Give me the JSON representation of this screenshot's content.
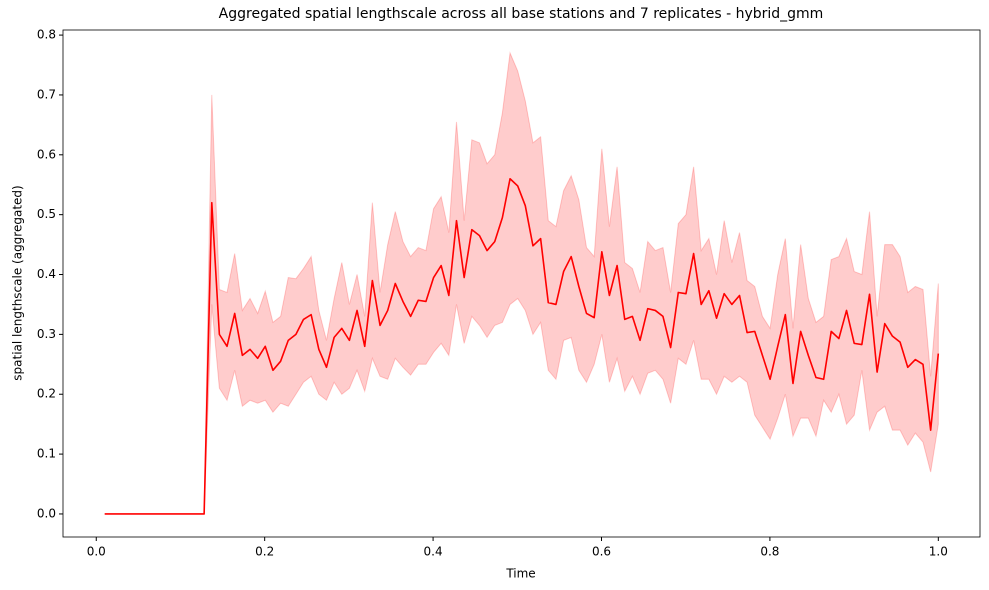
{
  "chart_data": {
    "type": "line",
    "title": "Aggregated spatial lengthscale across all base stations and 7 replicates - hybrid_gmm",
    "x_label": "Time",
    "y_label": "spatial lengthscale (aggregated)",
    "x": [
      0.01,
      0.0191,
      0.0282,
      0.0372,
      0.0463,
      0.0554,
      0.0645,
      0.0736,
      0.0827,
      0.0917,
      0.1008,
      0.1099,
      0.119,
      0.1281,
      0.1372,
      0.1462,
      0.1553,
      0.1644,
      0.1735,
      0.1826,
      0.1917,
      0.2007,
      0.2098,
      0.2189,
      0.228,
      0.2371,
      0.2461,
      0.2552,
      0.2643,
      0.2734,
      0.2825,
      0.2916,
      0.3006,
      0.3097,
      0.3188,
      0.3279,
      0.337,
      0.3461,
      0.3551,
      0.3642,
      0.3733,
      0.3824,
      0.3915,
      0.4006,
      0.4096,
      0.4187,
      0.4278,
      0.4369,
      0.446,
      0.4551,
      0.4641,
      0.4732,
      0.4823,
      0.4914,
      0.5005,
      0.5095,
      0.5186,
      0.5277,
      0.5368,
      0.5459,
      0.555,
      0.564,
      0.5731,
      0.5822,
      0.5913,
      0.6004,
      0.6094,
      0.6185,
      0.6276,
      0.6367,
      0.6458,
      0.6549,
      0.6639,
      0.673,
      0.6821,
      0.6912,
      0.7003,
      0.7094,
      0.7184,
      0.7275,
      0.7366,
      0.7457,
      0.7548,
      0.7639,
      0.7729,
      0.782,
      0.7911,
      0.8002,
      0.8093,
      0.8183,
      0.8274,
      0.8365,
      0.8456,
      0.8547,
      0.8638,
      0.8728,
      0.8819,
      0.891,
      0.9001,
      0.9092,
      0.9183,
      0.9273,
      0.9364,
      0.9455,
      0.9546,
      0.9637,
      0.9727,
      0.9818,
      0.9909,
      1
    ],
    "series": [
      {
        "color": "#ff0000",
        "values": [
          0,
          0,
          0,
          0,
          0,
          0,
          0,
          0,
          0,
          0,
          0,
          0,
          0,
          0,
          0.52,
          0.3,
          0.28,
          0.335,
          0.265,
          0.275,
          0.26,
          0.28,
          0.24,
          0.255,
          0.29,
          0.3,
          0.325,
          0.333,
          0.275,
          0.245,
          0.295,
          0.31,
          0.29,
          0.34,
          0.28,
          0.39,
          0.315,
          0.34,
          0.385,
          0.355,
          0.33,
          0.357,
          0.355,
          0.395,
          0.415,
          0.365,
          0.49,
          0.395,
          0.475,
          0.465,
          0.44,
          0.455,
          0.495,
          0.56,
          0.548,
          0.515,
          0.448,
          0.46,
          0.353,
          0.35,
          0.405,
          0.43,
          0.38,
          0.335,
          0.328,
          0.438,
          0.365,
          0.415,
          0.325,
          0.33,
          0.29,
          0.343,
          0.34,
          0.33,
          0.278,
          0.37,
          0.368,
          0.435,
          0.35,
          0.373,
          0.327,
          0.368,
          0.35,
          0.365,
          0.303,
          0.305,
          0.265,
          0.225,
          0.28,
          0.333,
          0.218,
          0.305,
          0.265,
          0.228,
          0.225,
          0.305,
          0.293,
          0.34,
          0.285,
          0.283,
          0.367,
          0.237,
          0.318,
          0.297,
          0.287,
          0.245,
          0.258,
          0.25,
          0.14,
          0.268
        ]
      }
    ],
    "band": {
      "color": "#ff0000",
      "opacity": 0.2,
      "upper": [
        0,
        0,
        0,
        0,
        0,
        0,
        0,
        0,
        0,
        0,
        0,
        0,
        0,
        0,
        0.7,
        0.375,
        0.37,
        0.435,
        0.34,
        0.36,
        0.335,
        0.372,
        0.32,
        0.33,
        0.395,
        0.393,
        0.41,
        0.43,
        0.34,
        0.29,
        0.36,
        0.42,
        0.35,
        0.4,
        0.33,
        0.52,
        0.37,
        0.45,
        0.505,
        0.455,
        0.43,
        0.445,
        0.44,
        0.51,
        0.53,
        0.47,
        0.655,
        0.49,
        0.625,
        0.62,
        0.585,
        0.6,
        0.67,
        0.77,
        0.74,
        0.69,
        0.62,
        0.63,
        0.49,
        0.48,
        0.54,
        0.565,
        0.525,
        0.445,
        0.43,
        0.61,
        0.48,
        0.58,
        0.42,
        0.41,
        0.37,
        0.455,
        0.44,
        0.445,
        0.37,
        0.485,
        0.5,
        0.58,
        0.44,
        0.46,
        0.4,
        0.49,
        0.42,
        0.47,
        0.39,
        0.38,
        0.33,
        0.31,
        0.4,
        0.46,
        0.31,
        0.45,
        0.36,
        0.32,
        0.33,
        0.425,
        0.43,
        0.46,
        0.405,
        0.4,
        0.505,
        0.33,
        0.45,
        0.45,
        0.43,
        0.37,
        0.38,
        0.375,
        0.23,
        0.385
      ],
      "lower": [
        0,
        0,
        0,
        0,
        0,
        0,
        0,
        0,
        0,
        0,
        0,
        0,
        0,
        0,
        0.35,
        0.21,
        0.19,
        0.24,
        0.18,
        0.19,
        0.185,
        0.19,
        0.17,
        0.185,
        0.18,
        0.2,
        0.22,
        0.23,
        0.2,
        0.19,
        0.22,
        0.2,
        0.21,
        0.24,
        0.205,
        0.26,
        0.23,
        0.225,
        0.26,
        0.245,
        0.232,
        0.25,
        0.25,
        0.27,
        0.285,
        0.265,
        0.35,
        0.285,
        0.33,
        0.315,
        0.295,
        0.315,
        0.32,
        0.35,
        0.36,
        0.34,
        0.3,
        0.32,
        0.24,
        0.225,
        0.29,
        0.295,
        0.24,
        0.22,
        0.25,
        0.3,
        0.22,
        0.26,
        0.205,
        0.23,
        0.2,
        0.235,
        0.24,
        0.225,
        0.185,
        0.26,
        0.25,
        0.29,
        0.225,
        0.225,
        0.2,
        0.23,
        0.22,
        0.23,
        0.22,
        0.165,
        0.145,
        0.125,
        0.16,
        0.2,
        0.13,
        0.16,
        0.16,
        0.13,
        0.19,
        0.17,
        0.2,
        0.15,
        0.165,
        0.24,
        0.14,
        0.17,
        0.18,
        0.14,
        0.14,
        0.115,
        0.135,
        0.12,
        0.07,
        0.15
      ]
    },
    "xlim": [
      -0.0395,
      1.0495
    ],
    "ylim": [
      -0.0385,
      0.8085
    ],
    "xticks": [
      {
        "value": 0,
        "label": "0.0"
      },
      {
        "value": 0.2,
        "label": "0.2"
      },
      {
        "value": 0.4,
        "label": "0.4"
      },
      {
        "value": 0.6,
        "label": "0.6"
      },
      {
        "value": 0.8,
        "label": "0.8"
      },
      {
        "value": 1,
        "label": "1.0"
      }
    ],
    "yticks": [
      {
        "value": 0,
        "label": "0.0"
      },
      {
        "value": 0.1,
        "label": "0.1"
      },
      {
        "value": 0.2,
        "label": "0.2"
      },
      {
        "value": 0.3,
        "label": "0.3"
      },
      {
        "value": 0.4,
        "label": "0.4"
      },
      {
        "value": 0.5,
        "label": "0.5"
      },
      {
        "value": 0.6,
        "label": "0.6"
      },
      {
        "value": 0.7,
        "label": "0.7"
      },
      {
        "value": 0.8,
        "label": "0.8"
      }
    ],
    "grid": false
  }
}
